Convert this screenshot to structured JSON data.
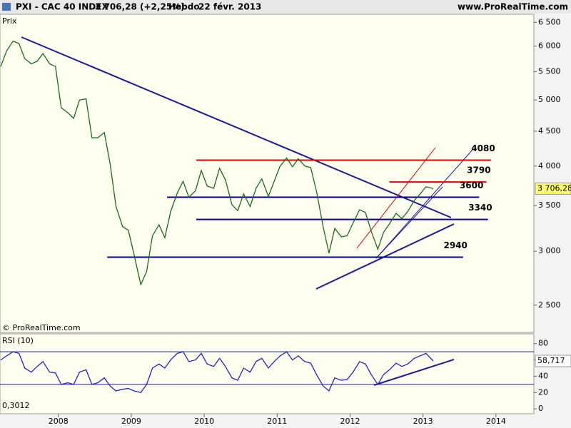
{
  "header": {
    "symbol": "PXI - CAC 40 INDEX",
    "quote": "3 706,28 (+2,25%)",
    "period": "Hebdo",
    "date": "22 févr. 2013",
    "site": "www.ProRealTime.com",
    "copyright": "© ProRealTime.com"
  },
  "chart_data": [
    {
      "type": "line",
      "y_label": "Prix",
      "log_scale": true,
      "color": "#1a6b1a",
      "xlim": [
        2007.2,
        2014.52
      ],
      "xticks": [
        2008,
        2009,
        2010,
        2011,
        2012,
        2013,
        2014
      ],
      "ylim": [
        2280,
        6680
      ],
      "yticks": [
        {
          "value": 2500,
          "label": "2 500"
        },
        {
          "value": 3000,
          "label": "3 000"
        },
        {
          "value": 3500,
          "label": "3 500"
        },
        {
          "value": 4000,
          "label": "4 000"
        },
        {
          "value": 4500,
          "label": "4 500"
        },
        {
          "value": 5000,
          "label": "5 000"
        },
        {
          "value": 5500,
          "label": "5 500"
        },
        {
          "value": 6000,
          "label": "6 000"
        },
        {
          "value": 6500,
          "label": "6 500"
        }
      ],
      "x": [
        2007.21,
        2007.29,
        2007.38,
        2007.46,
        2007.54,
        2007.63,
        2007.71,
        2007.79,
        2007.88,
        2007.96,
        2008.04,
        2008.13,
        2008.21,
        2008.29,
        2008.38,
        2008.46,
        2008.54,
        2008.63,
        2008.71,
        2008.79,
        2008.88,
        2008.96,
        2009.04,
        2009.13,
        2009.21,
        2009.29,
        2009.38,
        2009.46,
        2009.54,
        2009.63,
        2009.71,
        2009.79,
        2009.88,
        2009.96,
        2010.04,
        2010.13,
        2010.21,
        2010.29,
        2010.38,
        2010.46,
        2010.54,
        2010.63,
        2010.71,
        2010.79,
        2010.88,
        2010.96,
        2011.04,
        2011.13,
        2011.21,
        2011.29,
        2011.38,
        2011.46,
        2011.54,
        2011.63,
        2011.71,
        2011.79,
        2011.88,
        2011.96,
        2012.04,
        2012.13,
        2012.21,
        2012.29,
        2012.38,
        2012.46,
        2012.54,
        2012.63,
        2012.71,
        2012.79,
        2012.88,
        2012.96,
        2013.04,
        2013.14
      ],
      "values": [
        5600,
        5900,
        6100,
        6050,
        5750,
        5650,
        5700,
        5850,
        5650,
        5600,
        4870,
        4790,
        4700,
        5000,
        5020,
        4400,
        4400,
        4480,
        4030,
        3490,
        3260,
        3220,
        2960,
        2680,
        2800,
        3160,
        3280,
        3140,
        3430,
        3650,
        3800,
        3600,
        3680,
        3940,
        3740,
        3710,
        3970,
        3820,
        3510,
        3440,
        3640,
        3490,
        3710,
        3830,
        3610,
        3800,
        4000,
        4110,
        3990,
        4100,
        4000,
        3980,
        3670,
        3260,
        2980,
        3240,
        3150,
        3160,
        3300,
        3450,
        3420,
        3210,
        3020,
        3200,
        3290,
        3410,
        3350,
        3430,
        3560,
        3640,
        3730,
        3706.28
      ],
      "last_value": {
        "value": 3706.28,
        "label": "3 706,28"
      },
      "levels": [
        {
          "value": 4080,
          "color": "#e00000",
          "x": [
            2009.89,
            2013.93
          ]
        },
        {
          "value": 3790,
          "color": "#e00000",
          "x": [
            2012.54,
            2013.87
          ]
        },
        {
          "value": 3600,
          "color": "#00008b",
          "x": [
            2009.49,
            2013.77
          ]
        },
        {
          "value": 3340,
          "color": "#00008b",
          "x": [
            2009.89,
            2013.89
          ]
        },
        {
          "value": 2940,
          "color": "#00008b",
          "x": [
            2008.67,
            2013.55
          ]
        }
      ]
    },
    {
      "type": "line",
      "title": "RSI (10)",
      "color": "#2222cc",
      "xlim": [
        2007.2,
        2014.52
      ],
      "ylim": [
        -6,
        92
      ],
      "yticks": [
        0,
        20,
        40,
        60,
        80
      ],
      "bands": [
        30,
        70
      ],
      "annotation": "0,3012",
      "x": [
        2007.21,
        2007.29,
        2007.38,
        2007.46,
        2007.54,
        2007.63,
        2007.71,
        2007.79,
        2007.88,
        2007.96,
        2008.04,
        2008.13,
        2008.21,
        2008.29,
        2008.38,
        2008.46,
        2008.54,
        2008.63,
        2008.71,
        2008.79,
        2008.88,
        2008.96,
        2009.04,
        2009.13,
        2009.21,
        2009.29,
        2009.38,
        2009.46,
        2009.54,
        2009.63,
        2009.71,
        2009.79,
        2009.88,
        2009.96,
        2010.04,
        2010.13,
        2010.21,
        2010.29,
        2010.38,
        2010.46,
        2010.54,
        2010.63,
        2010.71,
        2010.79,
        2010.88,
        2010.96,
        2011.04,
        2011.13,
        2011.21,
        2011.29,
        2011.38,
        2011.46,
        2011.54,
        2011.63,
        2011.71,
        2011.79,
        2011.88,
        2011.96,
        2012.04,
        2012.13,
        2012.21,
        2012.29,
        2012.38,
        2012.46,
        2012.54,
        2012.63,
        2012.71,
        2012.79,
        2012.88,
        2012.96,
        2013.04,
        2013.14
      ],
      "values": [
        60,
        65,
        70,
        68,
        50,
        45,
        52,
        58,
        45,
        44,
        30,
        32,
        30,
        45,
        48,
        30,
        32,
        38,
        28,
        22,
        24,
        25,
        22,
        20,
        30,
        50,
        55,
        50,
        60,
        68,
        70,
        58,
        60,
        68,
        55,
        52,
        62,
        52,
        38,
        35,
        50,
        45,
        58,
        62,
        50,
        58,
        65,
        70,
        60,
        65,
        58,
        56,
        42,
        28,
        22,
        38,
        35,
        36,
        45,
        58,
        55,
        42,
        30,
        42,
        48,
        56,
        52,
        55,
        62,
        65,
        68,
        58.717
      ],
      "last_value": {
        "value": 58.717,
        "label": "58,717"
      }
    }
  ]
}
